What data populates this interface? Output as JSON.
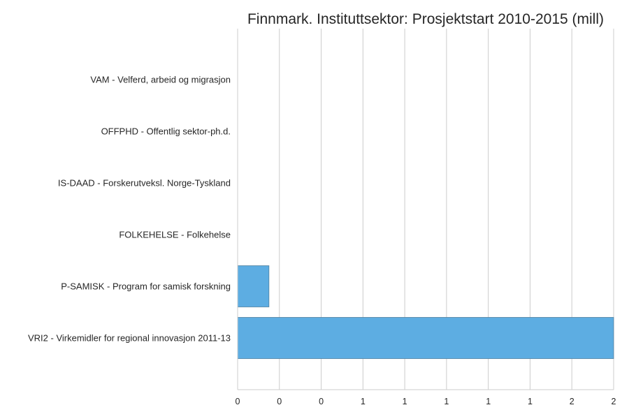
{
  "chart_data": {
    "type": "bar",
    "orientation": "horizontal",
    "title": "Finnmark. Instituttsektor: Prosjektstart 2010-2015 (mill)",
    "xlabel": "",
    "ylabel": "",
    "categories": [
      "VAM - Velferd, arbeid og migrasjon",
      "OFFPHD - Offentlig sektor-ph.d.",
      "IS-DAAD - Forskerutveksl. Norge-Tyskland",
      "FOLKEHELSE - Folkehelse",
      "P-SAMISK - Program for samisk forskning",
      "VRI2 - Virkemidler for regional innovasjon 2011-13"
    ],
    "values": [
      0,
      0,
      0,
      0,
      0.15,
      1.8
    ],
    "xlim": [
      0,
      1.8
    ],
    "xticks": [
      0,
      0.2,
      0.4,
      0.6,
      0.8,
      1.0,
      1.2,
      1.4,
      1.6,
      1.8
    ],
    "xtick_labels": [
      "0",
      "0",
      "0",
      "1",
      "1",
      "1",
      "1",
      "1",
      "2",
      "2"
    ],
    "grid": "vertical",
    "bar_color": "#5dade2",
    "bar_edge_color": "#4f7f9f",
    "grid_color": "#cccccc",
    "text_color": "#262626"
  }
}
